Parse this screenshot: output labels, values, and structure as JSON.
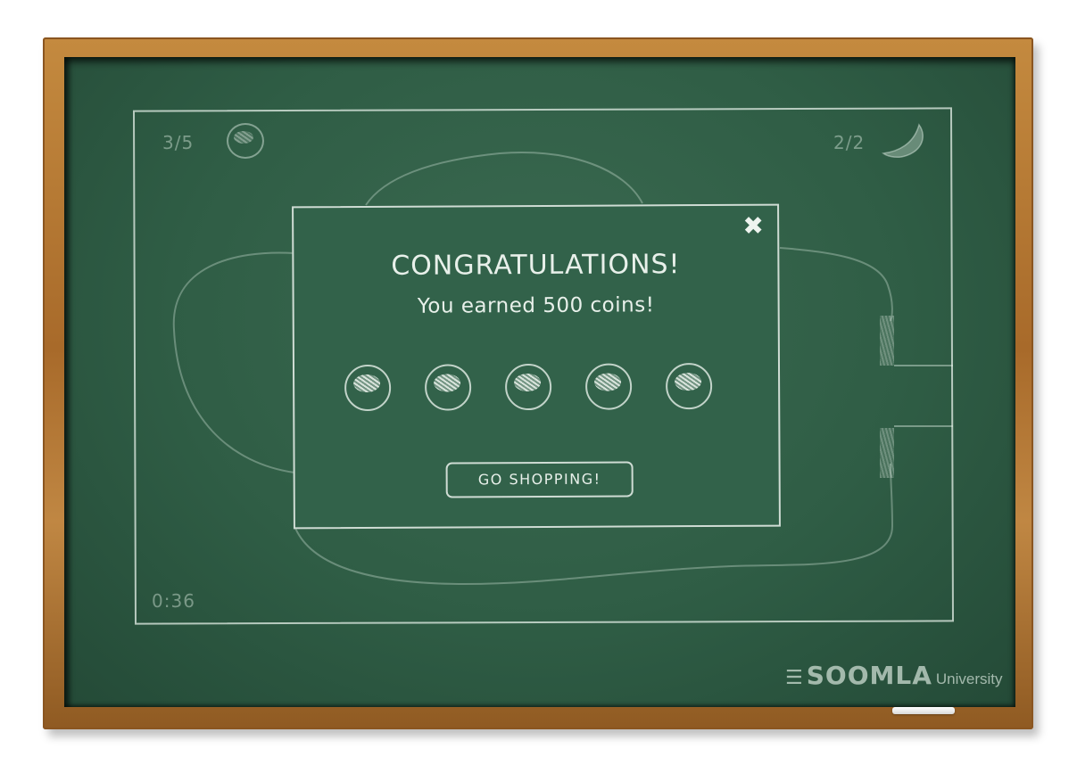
{
  "hud": {
    "coins_collected": "3/5",
    "bananas_collected": "2/2",
    "timer": "0:36"
  },
  "popup": {
    "title": "CONGRATULATIONS!",
    "message": "You earned 500 coins!",
    "coins_shown": 5,
    "shop_button_label": "GO SHOPPING!",
    "close_icon": "close-icon"
  },
  "branding": {
    "logo_text": "SOOMLA",
    "logo_subtext": "University"
  },
  "colors": {
    "board": "#2f5d45",
    "chalk": "#e6efe8",
    "frame": "#b07634"
  }
}
